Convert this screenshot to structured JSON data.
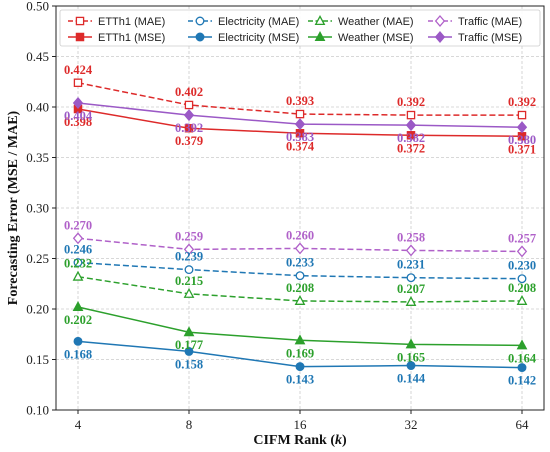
{
  "chart_data": {
    "type": "line",
    "xlabel": "CIFM Rank (k)",
    "xlabel_prefix": "CIFM Rank (",
    "xlabel_var": "k",
    "xlabel_suffix": ")",
    "ylabel": "Forecasting Error (MSE / MAE)",
    "x": [
      4,
      8,
      16,
      32,
      64
    ],
    "x_tick_labels": [
      "4",
      "8",
      "16",
      "32",
      "64"
    ],
    "x_scale": "categorical (log2-spaced)",
    "ylim": [
      0.1,
      0.5
    ],
    "y_ticks": [
      "0.10",
      "0.15",
      "0.20",
      "0.25",
      "0.30",
      "0.35",
      "0.40",
      "0.45",
      "0.50"
    ],
    "grid": true,
    "legend_position": "top",
    "legend_columns": 4,
    "series": [
      {
        "name": "ETTh1 (MAE)",
        "values": [
          0.424,
          0.402,
          0.393,
          0.392,
          0.392
        ],
        "labels": [
          "0.424",
          "0.402",
          "0.393",
          "0.392",
          "0.392"
        ],
        "color": "#dd2a2a",
        "line": "dashed",
        "marker": "square",
        "filled": false,
        "label_side": "above"
      },
      {
        "name": "ETTh1 (MSE)",
        "values": [
          0.398,
          0.379,
          0.374,
          0.372,
          0.371
        ],
        "labels": [
          "0.398",
          "0.379",
          "0.374",
          "0.372",
          "0.371"
        ],
        "color": "#dd2a2a",
        "line": "solid",
        "marker": "square",
        "filled": true,
        "label_side": "below"
      },
      {
        "name": "Electricity (MAE)",
        "values": [
          0.246,
          0.239,
          0.233,
          0.231,
          0.23
        ],
        "labels": [
          "0.246",
          "0.239",
          "0.233",
          "0.231",
          "0.230"
        ],
        "color": "#1f77b4",
        "line": "dashed",
        "marker": "circle",
        "filled": false,
        "label_side": "above"
      },
      {
        "name": "Electricity (MSE)",
        "values": [
          0.168,
          0.158,
          0.143,
          0.144,
          0.142
        ],
        "labels": [
          "0.168",
          "0.158",
          "0.143",
          "0.144",
          "0.142"
        ],
        "color": "#1f77b4",
        "line": "solid",
        "marker": "circle",
        "filled": true,
        "label_side": "below"
      },
      {
        "name": "Weather (MAE)",
        "values": [
          0.232,
          0.215,
          0.208,
          0.207,
          0.208
        ],
        "labels": [
          "0.232",
          "0.215",
          "0.208",
          "0.207",
          "0.208"
        ],
        "color": "#2ca02c",
        "line": "dashed",
        "marker": "triangle",
        "filled": false,
        "label_side": "above"
      },
      {
        "name": "Weather (MSE)",
        "values": [
          0.202,
          0.177,
          0.169,
          0.165,
          0.164
        ],
        "labels": [
          "0.202",
          "0.177",
          "0.169",
          "0.165",
          "0.164"
        ],
        "color": "#2ca02c",
        "line": "solid",
        "marker": "triangle",
        "filled": true,
        "label_side": "below"
      },
      {
        "name": "Traffic (MAE)",
        "values": [
          0.27,
          0.259,
          0.26,
          0.258,
          0.257
        ],
        "labels": [
          "0.270",
          "0.259",
          "0.260",
          "0.258",
          "0.257"
        ],
        "color": "#b061c9",
        "line": "dashed",
        "marker": "diamond",
        "filled": false,
        "label_side": "above"
      },
      {
        "name": "Traffic (MSE)",
        "values": [
          0.404,
          0.392,
          0.383,
          0.382,
          0.38
        ],
        "labels": [
          "0.404",
          "0.392",
          "0.383",
          "0.382",
          "0.380"
        ],
        "color": "#9b59c6",
        "line": "solid",
        "marker": "diamond",
        "filled": true,
        "label_side": "below"
      }
    ]
  }
}
